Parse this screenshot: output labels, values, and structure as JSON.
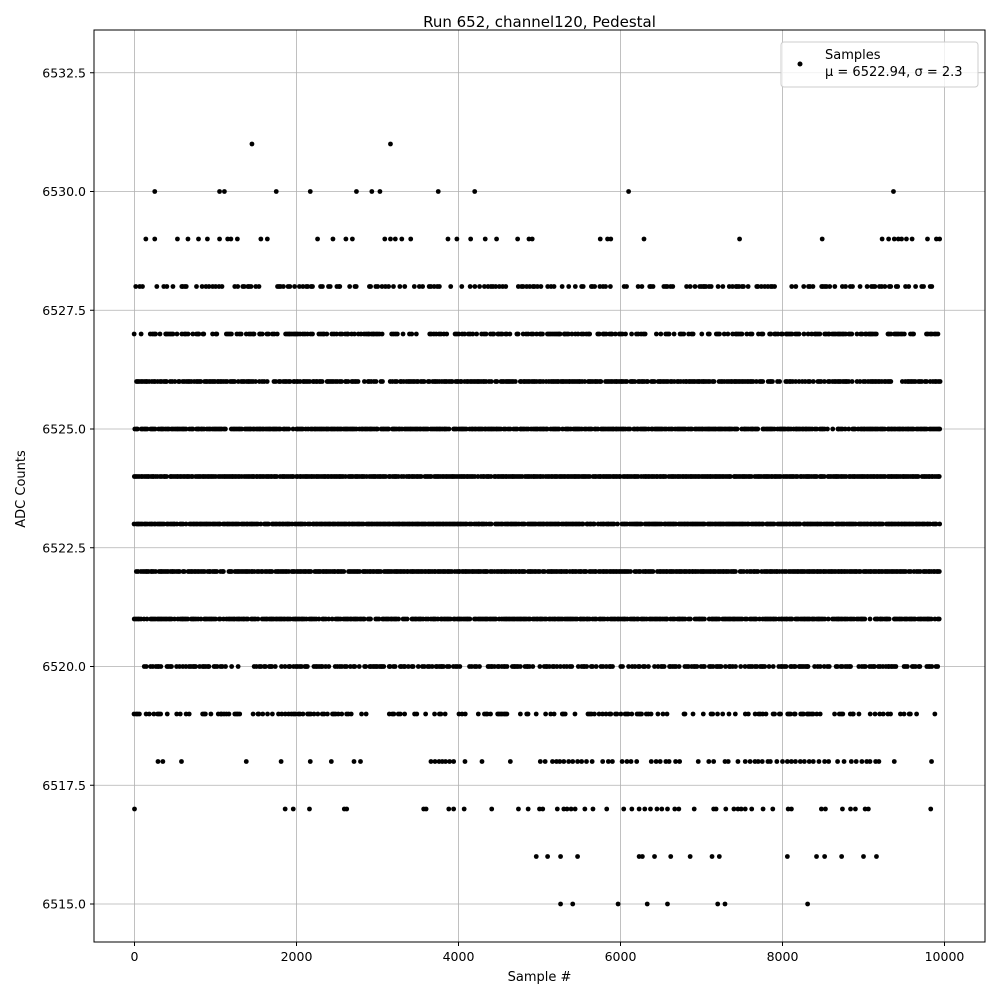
{
  "chart_data": {
    "type": "scatter",
    "title": "Run 652, channel120, Pedestal",
    "xlabel": "Sample #",
    "ylabel": "ADC Counts",
    "xlim": [
      -500,
      10500
    ],
    "ylim": [
      6514.2,
      6533.4
    ],
    "xticks": [
      0,
      2000,
      4000,
      6000,
      8000,
      10000
    ],
    "xtick_labels": [
      "0",
      "2000",
      "4000",
      "6000",
      "8000",
      "10000"
    ],
    "yticks": [
      6515.0,
      6517.5,
      6520.0,
      6522.5,
      6525.0,
      6527.5,
      6530.0,
      6532.5
    ],
    "ytick_labels": [
      "6515.0",
      "6517.5",
      "6520.0",
      "6522.5",
      "6525.0",
      "6527.5",
      "6530.0",
      "6532.5"
    ],
    "grid": true,
    "legend": {
      "placement": "top-right",
      "entries": [
        {
          "label": "Samples",
          "stats": "μ = 6522.94, σ = 2.3",
          "marker_color": "#000000"
        }
      ]
    },
    "marker_color": "#000000",
    "series": [
      {
        "x_range": [
          0,
          9960
        ],
        "clusters": [
          {
            "y": 6515,
            "x": [
              5260,
              5410,
              5970,
              6330,
              6580,
              7200,
              7290,
              8310
            ]
          },
          {
            "y": 6516,
            "x": [
              4960,
              5100,
              5260,
              5470,
              6230,
              6270,
              6420,
              6620,
              6860,
              7130,
              7220,
              8060,
              8420,
              8520,
              8730,
              9000,
              9160
            ]
          },
          {
            "y": 6517,
            "x": [
              0,
              1860,
              1960,
              2160,
              2590,
              2620,
              3570,
              3600,
              3880,
              3940,
              4070,
              4410,
              4740,
              4860,
              5000,
              5040,
              5220,
              5300,
              5340,
              5390,
              5440,
              5560,
              5660,
              5830,
              6040,
              6140,
              6230,
              6300,
              6370,
              6450,
              6510,
              6580,
              6670,
              6720,
              6910,
              7150,
              7180,
              7300,
              7400,
              7450,
              7490,
              7540,
              7620,
              7760,
              7880,
              8070,
              8110,
              8480,
              8530,
              8740,
              8840,
              8900,
              9020,
              9060,
              9830
            ]
          },
          {
            "y": 6518,
            "x": [
              290,
              350,
              580,
              1380,
              1810,
              2170,
              2430,
              2710,
              2790,
              3660,
              3710,
              3760,
              3800,
              3840,
              3890,
              3940,
              4080,
              4290,
              4640,
              5010,
              5070,
              5160,
              5210,
              5250,
              5300,
              5360,
              5410,
              5470,
              5520,
              5580,
              5650,
              5780,
              5850,
              5900,
              6020,
              6080,
              6130,
              6200,
              6380,
              6440,
              6490,
              6560,
              6600,
              6680,
              6730,
              6960,
              7090,
              7150,
              7290,
              7330,
              7450,
              7540,
              7600,
              7660,
              7700,
              7750,
              7820,
              7850,
              7930,
              8000,
              8060,
              8110,
              8160,
              8220,
              8270,
              8330,
              8380,
              8450,
              8520,
              8570,
              8680,
              8760,
              8850,
              8910,
              8980,
              9040,
              9080,
              9150,
              9190,
              9380,
              9840
            ]
          }
        ],
        "bands": [
          {
            "y": 6519,
            "density": 0.38,
            "x_from": 0,
            "x_to": 9900
          },
          {
            "y": 6520,
            "density": 0.55,
            "x_from": 100,
            "x_to": 9920
          },
          {
            "y": 6521,
            "density": 0.85,
            "x_from": 0,
            "x_to": 9940
          },
          {
            "y": 6522,
            "density": 0.88,
            "x_from": 0,
            "x_to": 9940
          },
          {
            "y": 6523,
            "density": 0.92,
            "x_from": 0,
            "x_to": 9950
          },
          {
            "y": 6524,
            "density": 0.94,
            "x_from": 0,
            "x_to": 9950
          },
          {
            "y": 6525,
            "density": 0.88,
            "x_from": 0,
            "x_to": 9950
          },
          {
            "y": 6526,
            "density": 0.78,
            "x_from": 0,
            "x_to": 9950
          },
          {
            "y": 6527,
            "density": 0.55,
            "x_from": 0,
            "x_to": 9950
          },
          {
            "y": 6528,
            "density": 0.35,
            "x_from": 0,
            "x_to": 9950
          }
        ],
        "sparse_high": [
          {
            "y": 6529,
            "x": [
              140,
              250,
              530,
              660,
              790,
              900,
              1050,
              1150,
              1190,
              1270,
              1560,
              1640,
              2260,
              2450,
              2610,
              2690,
              3090,
              3160,
              3220,
              3300,
              3410,
              3870,
              3980,
              4150,
              4330,
              4470,
              4730,
              4870,
              4910,
              5750,
              5840,
              5880,
              6290,
              7470,
              8490,
              9230,
              9310,
              9380,
              9430,
              9470,
              9530,
              9600,
              9790,
              9900,
              9940
            ]
          },
          {
            "y": 6530,
            "x": [
              250,
              1050,
              1110,
              1750,
              2170,
              2740,
              2930,
              3030,
              3750,
              4200,
              6100,
              9370
            ]
          },
          {
            "y": 6531,
            "x": [
              1450,
              3160
            ]
          }
        ]
      }
    ]
  }
}
